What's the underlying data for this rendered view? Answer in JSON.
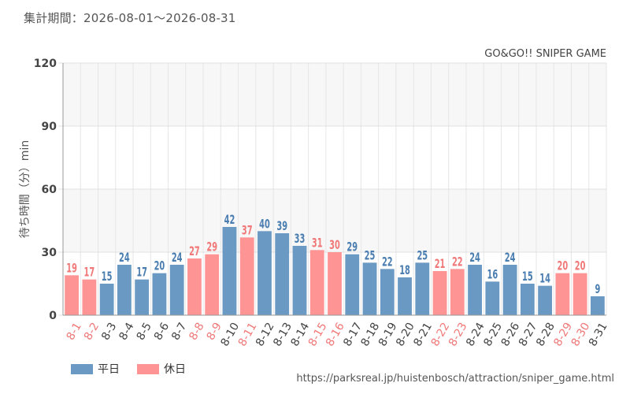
{
  "header": {
    "period": "集計期間：2026-08-01～2026-08-31",
    "attraction": "GO&GO!! SNIPER GAME"
  },
  "colors": {
    "weekday": "#6a9ac4",
    "holiday": "#ff9494",
    "weekday_label": "#4a7db0",
    "holiday_label": "#f07878"
  },
  "legend": {
    "weekday": "平日",
    "holiday": "休日"
  },
  "source_url": "https://parksreal.jp/huistenbosch/attraction/sniper_game.html",
  "chart_data": {
    "type": "bar",
    "ylabel": "待ち時間（分）min",
    "ylim": [
      0,
      120
    ],
    "yticks": [
      0,
      30,
      60,
      90,
      120
    ],
    "grid": true,
    "categories": [
      "8-1",
      "8-2",
      "8-3",
      "8-4",
      "8-5",
      "8-6",
      "8-7",
      "8-8",
      "8-9",
      "8-10",
      "8-11",
      "8-12",
      "8-13",
      "8-14",
      "8-15",
      "8-16",
      "8-17",
      "8-18",
      "8-19",
      "8-20",
      "8-21",
      "8-22",
      "8-23",
      "8-24",
      "8-25",
      "8-26",
      "8-27",
      "8-28",
      "8-29",
      "8-30",
      "8-31"
    ],
    "values": [
      19,
      17,
      15,
      24,
      17,
      20,
      24,
      27,
      29,
      42,
      37,
      40,
      39,
      33,
      31,
      30,
      29,
      25,
      22,
      18,
      25,
      21,
      22,
      24,
      16,
      24,
      15,
      14,
      20,
      20,
      9
    ],
    "day_type": [
      "holiday",
      "holiday",
      "weekday",
      "weekday",
      "weekday",
      "weekday",
      "weekday",
      "holiday",
      "holiday",
      "weekday",
      "holiday",
      "weekday",
      "weekday",
      "weekday",
      "holiday",
      "holiday",
      "weekday",
      "weekday",
      "weekday",
      "weekday",
      "weekday",
      "holiday",
      "holiday",
      "weekday",
      "weekday",
      "weekday",
      "weekday",
      "weekday",
      "holiday",
      "holiday",
      "weekday"
    ]
  }
}
